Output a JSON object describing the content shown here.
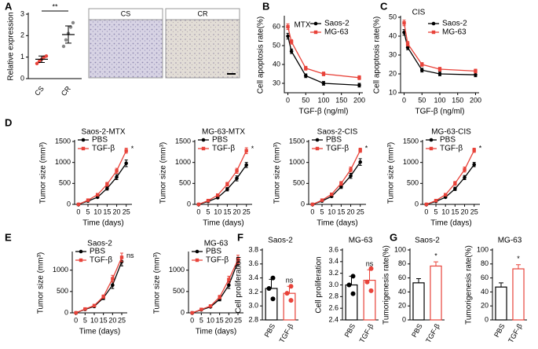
{
  "panels": [
    "A",
    "B",
    "C",
    "D",
    "E",
    "F",
    "G"
  ],
  "chart_data": [
    {
      "type": "dot",
      "ylabel": "Relative expression",
      "categories": [
        "CS",
        "CR"
      ],
      "colors": [
        "#e8433a",
        "#888888"
      ],
      "points": [
        [
          0.7,
          0.8,
          0.9,
          1.0,
          1.05
        ],
        [
          1.5,
          1.8,
          2.1,
          2.4,
          2.6
        ]
      ],
      "values": [
        0.9,
        2.05
      ],
      "errors": [
        0.15,
        0.4
      ],
      "ylim": [
        0,
        3
      ],
      "yticks": [
        0,
        1,
        2,
        3
      ],
      "annotation": "**",
      "image_labels": [
        "CS",
        "CR"
      ]
    },
    {
      "type": "line",
      "title": "MTX",
      "xlabel": "TGF-β (ng/ml)",
      "ylabel": "Cell apoptosis rate(%)",
      "x": [
        0,
        10,
        50,
        100,
        200
      ],
      "xlim": [
        -10,
        210
      ],
      "xticks": [
        0,
        50,
        100,
        150,
        200
      ],
      "ylim": [
        25,
        65
      ],
      "yticks": [
        30,
        40,
        50,
        60
      ],
      "series": [
        {
          "name": "Saos-2",
          "color": "#000000",
          "values": [
            55,
            47,
            34,
            30,
            29
          ],
          "errors": [
            1.5,
            1.2,
            1,
            1,
            1
          ]
        },
        {
          "name": "MG-63",
          "color": "#e8433a",
          "values": [
            60,
            52,
            38,
            35,
            33
          ],
          "errors": [
            1.5,
            1.2,
            1,
            1,
            1
          ]
        }
      ]
    },
    {
      "type": "line",
      "title": "CIS",
      "xlabel": "TGF-β (ng/ml)",
      "ylabel": "Cell apoptosis rate(%)",
      "x": [
        0,
        10,
        50,
        100,
        200
      ],
      "xlim": [
        -10,
        210
      ],
      "xticks": [
        0,
        50,
        100,
        150,
        200
      ],
      "ylim": [
        10,
        50
      ],
      "yticks": [
        10,
        20,
        30,
        40,
        50
      ],
      "series": [
        {
          "name": "Saos-2",
          "color": "#000000",
          "values": [
            42,
            34,
            22,
            20,
            19.5
          ],
          "errors": [
            1.5,
            1.2,
            1,
            1,
            1
          ]
        },
        {
          "name": "MG-63",
          "color": "#e8433a",
          "values": [
            47,
            36,
            25,
            22.5,
            21.5
          ],
          "errors": [
            1.5,
            1.2,
            1,
            1,
            1
          ]
        }
      ]
    },
    {
      "type": "line",
      "title": "Saos-2-MTX",
      "xlabel": "Time (days)",
      "ylabel": "Tumor size (mm³)",
      "x": [
        0,
        5,
        10,
        15,
        20,
        25
      ],
      "xlim": [
        -2,
        28
      ],
      "xticks": [
        0,
        5,
        10,
        15,
        20,
        25
      ],
      "ylim": [
        0,
        1500
      ],
      "yticks": [
        0,
        500,
        1000,
        1500
      ],
      "annotation": "*",
      "series": [
        {
          "name": "PBS",
          "color": "#000000",
          "values": [
            0,
            80,
            170,
            380,
            650,
            980
          ],
          "errors": [
            0,
            10,
            20,
            40,
            60,
            80
          ]
        },
        {
          "name": "TGF-β",
          "color": "#e8433a",
          "values": [
            0,
            100,
            230,
            480,
            800,
            1280
          ],
          "errors": [
            0,
            12,
            25,
            45,
            60,
            60
          ]
        }
      ]
    },
    {
      "type": "line",
      "title": "MG-63-MTX",
      "xlabel": "Time (days)",
      "ylabel": "Tumor size (mm³)",
      "x": [
        0,
        5,
        10,
        15,
        20,
        25
      ],
      "xlim": [
        -2,
        28
      ],
      "xticks": [
        0,
        5,
        10,
        15,
        20,
        25
      ],
      "ylim": [
        0,
        1500
      ],
      "yticks": [
        0,
        500,
        1000,
        1500
      ],
      "annotation": "*",
      "series": [
        {
          "name": "PBS",
          "color": "#000000",
          "values": [
            0,
            70,
            160,
            360,
            620,
            940
          ],
          "errors": [
            0,
            10,
            20,
            40,
            60,
            60
          ]
        },
        {
          "name": "TGF-β",
          "color": "#e8433a",
          "values": [
            0,
            90,
            220,
            480,
            800,
            1280
          ],
          "errors": [
            0,
            12,
            25,
            45,
            60,
            70
          ]
        }
      ]
    },
    {
      "type": "line",
      "title": "Saos-2-CIS",
      "xlabel": "Time (days)",
      "ylabel": "Tumor size (mm³)",
      "x": [
        0,
        5,
        10,
        15,
        20,
        25
      ],
      "xlim": [
        -2,
        28
      ],
      "xticks": [
        0,
        5,
        10,
        15,
        20,
        25
      ],
      "ylim": [
        0,
        1500
      ],
      "yticks": [
        0,
        500,
        1000,
        1500
      ],
      "annotation": "*",
      "series": [
        {
          "name": "PBS",
          "color": "#000000",
          "values": [
            0,
            80,
            190,
            420,
            680,
            1010
          ],
          "errors": [
            0,
            10,
            20,
            40,
            60,
            80
          ]
        },
        {
          "name": "TGF-β",
          "color": "#e8433a",
          "values": [
            0,
            100,
            240,
            500,
            830,
            1290
          ],
          "errors": [
            0,
            12,
            25,
            45,
            60,
            50
          ]
        }
      ]
    },
    {
      "type": "line",
      "title": "MG-63-CIS",
      "xlabel": "Time (days)",
      "ylabel": "Tumor size (mm³)",
      "x": [
        0,
        5,
        10,
        15,
        20,
        25
      ],
      "xlim": [
        -2,
        28
      ],
      "xticks": [
        0,
        5,
        10,
        15,
        20,
        25
      ],
      "ylim": [
        0,
        1500
      ],
      "yticks": [
        0,
        500,
        1000,
        1500
      ],
      "annotation": "*",
      "series": [
        {
          "name": "PBS",
          "color": "#000000",
          "values": [
            0,
            70,
            170,
            370,
            640,
            950
          ],
          "errors": [
            0,
            10,
            20,
            40,
            50,
            50
          ]
        },
        {
          "name": "TGF-β",
          "color": "#e8433a",
          "values": [
            0,
            90,
            230,
            500,
            830,
            1290
          ],
          "errors": [
            0,
            12,
            25,
            45,
            60,
            50
          ]
        }
      ]
    },
    {
      "type": "line",
      "title": "Saos-2",
      "xlabel": "Time (days)",
      "ylabel": "Tumor size (mm³)",
      "x": [
        0,
        5,
        10,
        15,
        20,
        25
      ],
      "xlim": [
        -2,
        28
      ],
      "xticks": [
        0,
        5,
        10,
        15,
        20,
        25
      ],
      "ylim": [
        0,
        1400
      ],
      "yticks": [
        0,
        500,
        1000
      ],
      "annotation": "ns",
      "series": [
        {
          "name": "PBS",
          "color": "#000000",
          "values": [
            0,
            80,
            150,
            350,
            650,
            1200
          ],
          "errors": [
            0,
            10,
            20,
            40,
            80,
            100
          ]
        },
        {
          "name": "TGF-β",
          "color": "#e8433a",
          "values": [
            0,
            90,
            170,
            380,
            800,
            1300
          ],
          "errors": [
            0,
            10,
            20,
            40,
            80,
            100
          ]
        }
      ]
    },
    {
      "type": "line",
      "title": "MG-63",
      "xlabel": "Time (days)",
      "ylabel": "Tumor size (mm³)",
      "x": [
        0,
        5,
        10,
        15,
        20,
        25
      ],
      "xlim": [
        -2,
        28
      ],
      "xticks": [
        0,
        5,
        10,
        15,
        20,
        25
      ],
      "ylim": [
        0,
        1400
      ],
      "yticks": [
        0,
        500,
        1000
      ],
      "series": [
        {
          "name": "PBS",
          "color": "#000000",
          "values": [
            0,
            70,
            140,
            320,
            650,
            1200
          ],
          "errors": [
            0,
            10,
            20,
            40,
            80,
            100
          ]
        },
        {
          "name": "TGF-β",
          "color": "#e8433a",
          "values": [
            0,
            80,
            160,
            370,
            780,
            1250
          ],
          "errors": [
            0,
            10,
            20,
            40,
            80,
            100
          ]
        }
      ]
    },
    {
      "type": "bar",
      "title": "Saos-2",
      "ylabel": "Cell proliferation",
      "categories": [
        "PBS",
        "TGF-β"
      ],
      "colors": [
        "#000000",
        "#e8433a"
      ],
      "values": [
        3.25,
        3.18
      ],
      "errors": [
        0.13,
        0.1
      ],
      "points": [
        [
          3.1,
          3.25,
          3.4
        ],
        [
          3.08,
          3.18,
          3.28
        ]
      ],
      "ylim": [
        2.8,
        3.8
      ],
      "yticks": [
        {
          "value": 2.8,
          "label": "2.8"
        },
        {
          "value": 3.0,
          "label": "3.0"
        },
        {
          "value": 3.2,
          "label": "3.2"
        },
        {
          "value": 3.4,
          "label": "3.4"
        },
        {
          "value": 3.6,
          "label": "3.6"
        },
        {
          "value": 3.8,
          "label": "3.8"
        }
      ],
      "annotation": "ns"
    },
    {
      "type": "bar",
      "title": "MG-63",
      "ylabel": "Cell proliferation",
      "categories": [
        "PBS",
        "TGF-β"
      ],
      "colors": [
        "#000000",
        "#e8433a"
      ],
      "values": [
        3.0,
        3.08
      ],
      "errors": [
        0.15,
        0.18
      ],
      "points": [
        [
          2.85,
          3.0,
          3.15
        ],
        [
          2.9,
          3.05,
          3.28
        ]
      ],
      "ylim": [
        2.4,
        3.6
      ],
      "yticks": [
        {
          "value": 2.4,
          "label": "2.4"
        },
        {
          "value": 2.6,
          "label": "2.6"
        },
        {
          "value": 2.8,
          "label": "2.8"
        },
        {
          "value": 3.0,
          "label": "3.0"
        },
        {
          "value": 3.2,
          "label": "3.2"
        },
        {
          "value": 3.4,
          "label": "3.4"
        },
        {
          "value": 3.6,
          "label": "3.6"
        }
      ],
      "annotation": "ns"
    },
    {
      "type": "bar",
      "title": "Saos-2",
      "ylabel": "Tumorigenesis rate(%)",
      "categories": [
        "PBS",
        "TGF-β"
      ],
      "colors": [
        "#000000",
        "#e8433a"
      ],
      "values": [
        53,
        77
      ],
      "errors": [
        6,
        6
      ],
      "ylim": [
        0,
        100
      ],
      "yticks": [
        0,
        20,
        40,
        60,
        80,
        100
      ],
      "annotation": "*"
    },
    {
      "type": "bar",
      "title": "MG-63",
      "ylabel": "Tumorigenesis rate(%)",
      "categories": [
        "PBS",
        "TGF-β"
      ],
      "colors": [
        "#000000",
        "#e8433a"
      ],
      "values": [
        47,
        73
      ],
      "errors": [
        6,
        6
      ],
      "ylim": [
        0,
        100
      ],
      "yticks": [
        0,
        20,
        40,
        60,
        80,
        100
      ],
      "annotation": "*"
    }
  ]
}
